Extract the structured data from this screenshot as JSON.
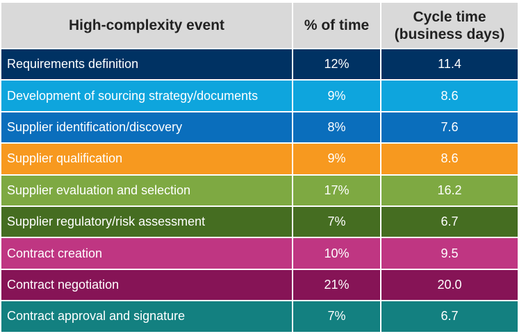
{
  "headers": {
    "event": "High-complexity event",
    "pct": "% of time",
    "cycle_line1": "Cycle time",
    "cycle_line2": "(business days)"
  },
  "chart_data": {
    "type": "table",
    "columns": [
      "High-complexity event",
      "% of time",
      "Cycle time (business days)"
    ],
    "rows": [
      {
        "event": "Requirements definition",
        "pct": "12%",
        "cycle": "11.4",
        "color": "#003263"
      },
      {
        "event": "Development of sourcing strategy/documents",
        "pct": "9%",
        "cycle": "8.6",
        "color": "#0ea5dd"
      },
      {
        "event": "Supplier identification/discovery",
        "pct": "8%",
        "cycle": "7.6",
        "color": "#0a6ebc"
      },
      {
        "event": "Supplier qualification",
        "pct": "9%",
        "cycle": "8.6",
        "color": "#f7991f"
      },
      {
        "event": "Supplier evaluation and selection",
        "pct": "17%",
        "cycle": "16.2",
        "color": "#7ea942"
      },
      {
        "event": "Supplier regulatory/risk assessment",
        "pct": "7%",
        "cycle": "6.7",
        "color": "#456d21"
      },
      {
        "event": "Contract creation",
        "pct": "10%",
        "cycle": "9.5",
        "color": "#bf3682"
      },
      {
        "event": "Contract negotiation",
        "pct": "21%",
        "cycle": "20.0",
        "color": "#861456"
      },
      {
        "event": "Contract approval and signature",
        "pct": "7%",
        "cycle": "6.7",
        "color": "#138080"
      }
    ]
  }
}
